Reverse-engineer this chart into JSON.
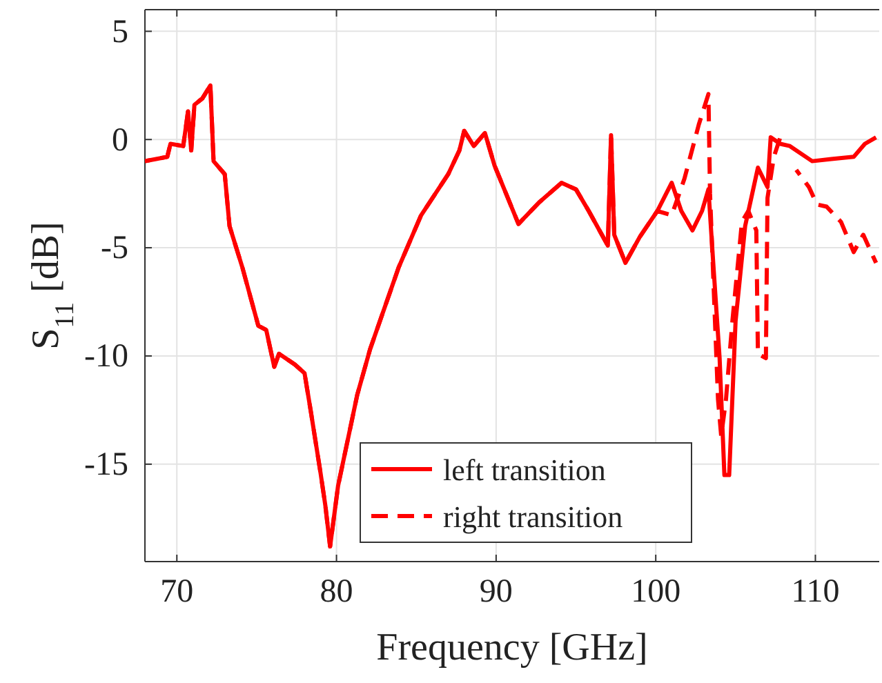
{
  "chart_data": {
    "type": "line",
    "xlabel": "Frequency [GHz]",
    "ylabel": "S$_{11}$ [dB]",
    "xlim": [
      68,
      114
    ],
    "ylim": [
      -19.5,
      6
    ],
    "xticks": [
      70,
      80,
      90,
      100,
      110
    ],
    "yticks": [
      -15,
      -10,
      -5,
      0,
      5
    ],
    "grid": true,
    "legend": "bottom",
    "series": [
      {
        "name": "left transition",
        "color": "#ff0000",
        "line_style": "solid",
        "x": [
          68,
          68.7,
          69.4,
          69.6,
          70.4,
          70.7,
          70.9,
          71.1,
          71.6,
          72.1,
          72.3,
          73.0,
          73.3,
          74.1,
          75.1,
          75.6,
          76.1,
          76.4,
          77.4,
          78.0,
          78.4,
          79.0,
          79.3,
          79.6,
          80.1,
          81.3,
          82.1,
          83.9,
          85.3,
          87.0,
          87.7,
          88.0,
          88.6,
          89.3,
          89.9,
          91.4,
          92.7,
          94.1,
          95.0,
          95.8,
          97.0,
          97.2,
          97.4,
          98.1,
          99.0,
          100.1,
          101.0,
          101.6,
          102.3,
          102.9,
          103.3,
          103.6,
          104.0,
          104.3,
          104.6,
          105.0,
          105.6,
          106.4,
          107.0,
          107.2,
          107.8,
          108.4,
          109.8,
          111.0,
          112.4,
          113.1,
          113.8
        ],
        "values": [
          -1.0,
          -0.9,
          -0.8,
          -0.2,
          -0.3,
          1.3,
          -0.5,
          1.6,
          1.9,
          2.5,
          -1.0,
          -1.6,
          -4.0,
          -5.9,
          -8.6,
          -8.8,
          -10.5,
          -9.9,
          -10.4,
          -10.8,
          -12.6,
          -15.4,
          -16.9,
          -18.8,
          -16.0,
          -11.8,
          -9.7,
          -5.9,
          -3.5,
          -1.6,
          -0.5,
          0.4,
          -0.3,
          0.3,
          -1.2,
          -3.9,
          -2.9,
          -2.0,
          -2.3,
          -3.3,
          -4.9,
          0.2,
          -4.4,
          -5.7,
          -4.5,
          -3.3,
          -2.0,
          -3.3,
          -4.2,
          -3.3,
          -2.3,
          -5.7,
          -10.1,
          -15.5,
          -15.5,
          -8.4,
          -4.0,
          -1.3,
          -2.2,
          0.1,
          -0.2,
          -0.3,
          -1.0,
          -0.9,
          -0.8,
          -0.2,
          0.1
        ]
      },
      {
        "name": "right transition",
        "color": "#ff0000",
        "line_style": "dashed",
        "x": [
          68,
          68.7,
          69.4,
          69.6,
          70.4,
          70.7,
          70.9,
          71.1,
          71.6,
          72.1,
          72.3,
          73.0,
          73.3,
          74.1,
          75.1,
          75.6,
          76.1,
          76.4,
          77.4,
          78.0,
          78.4,
          79.0,
          79.3,
          79.6,
          80.1,
          81.3,
          82.1,
          83.9,
          85.3,
          87.0,
          87.7,
          88.0,
          88.6,
          89.3,
          89.9,
          91.4,
          92.7,
          94.1,
          95.0,
          95.8,
          97.0,
          97.2,
          97.4,
          98.1,
          99.0,
          100.1,
          101.0,
          101.8,
          102.7,
          103.3,
          103.4,
          103.6,
          103.9,
          104.1,
          104.4,
          104.8,
          105.4,
          105.8,
          106.3,
          106.4,
          106.9,
          107.0,
          107.4,
          107.8,
          107.9,
          108.8,
          109.6,
          110.1,
          110.7,
          111.6,
          112.4,
          113.0,
          113.8
        ],
        "values": [
          -1.0,
          -0.9,
          -0.8,
          -0.2,
          -0.3,
          1.3,
          -0.5,
          1.6,
          1.9,
          2.5,
          -1.0,
          -1.6,
          -4.0,
          -5.9,
          -8.6,
          -8.8,
          -10.5,
          -9.9,
          -10.4,
          -10.8,
          -12.6,
          -15.4,
          -16.9,
          -18.8,
          -16.0,
          -11.8,
          -9.7,
          -5.9,
          -3.5,
          -1.6,
          -0.5,
          0.4,
          -0.3,
          0.3,
          -1.2,
          -3.9,
          -2.9,
          -2.0,
          -2.3,
          -3.3,
          -4.9,
          0.2,
          -4.4,
          -5.7,
          -4.5,
          -3.3,
          -3.5,
          -1.8,
          0.7,
          2.1,
          -2.5,
          -6.3,
          -12.0,
          -13.7,
          -12.0,
          -8.4,
          -3.8,
          -3.3,
          -4.2,
          -9.9,
          -10.1,
          -2.7,
          -0.8,
          0.1,
          null,
          -1.4,
          -2.2,
          -3.0,
          -3.1,
          -3.8,
          -5.2,
          -4.4,
          -5.7
        ]
      }
    ]
  }
}
